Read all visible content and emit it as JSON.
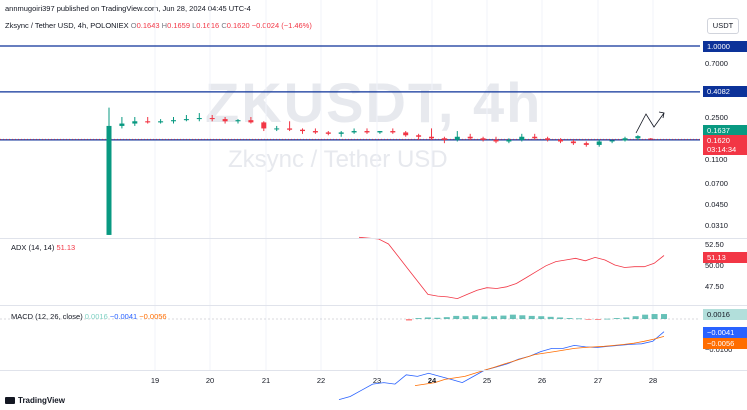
{
  "top_line": "annmugoiri397 published on TradingView.com, Jun 28, 2024 04:45 UTC-4",
  "quote_button": "USDT",
  "symbol": {
    "title": "Zksync / Tether USD, 4h, POLONIEX",
    "o_label": "O",
    "o": "0.1643",
    "h_label": "H",
    "h": "0.1659",
    "l_label": "L",
    "l": "0.1616",
    "c_label": "C",
    "c": "0.1620",
    "change": "−0.0024 (−1.46%)"
  },
  "watermark": {
    "ticker": "ZKUSDT, 4h",
    "name": "Zksync / Tether USD"
  },
  "price_axis": [
    "0.7000",
    "0.2500",
    "0.1100",
    "0.0700",
    "0.0450",
    "0.0310"
  ],
  "badges": {
    "line1": "1.0000",
    "line2": "0.4082",
    "high": "0.1637",
    "last": "0.1620",
    "countdown": "03:14:34",
    "adx": "51.13",
    "macd_hist": "0.0016",
    "macd": "−0.0041",
    "signal": "−0.0056"
  },
  "adx_panel": {
    "title": "ADX (14, 14)",
    "value": "51.13",
    "ticks": [
      "52.50",
      "50.00",
      "47.50"
    ]
  },
  "macd_panel": {
    "title": "MACD (12, 26, close)",
    "hist": "0.0016",
    "macd": "−0.0041",
    "signal": "−0.0056",
    "ticks": [
      "−0.0100"
    ]
  },
  "x_axis": [
    "19",
    "20",
    "21",
    "22",
    "23",
    "24",
    "25",
    "26",
    "27",
    "28"
  ],
  "footer": "TradingView",
  "colors": {
    "up": "#089981",
    "down": "#f23645",
    "line": "#0c3299",
    "adx": "#f23645",
    "macd": "#2962ff",
    "signal": "#ff6d00"
  },
  "chart_data": {
    "type": "candlestick",
    "title": "Zksync / Tether USD, 4h, POLONIEX",
    "scale": "log",
    "horizontal_lines": [
      1.0,
      0.4082,
      0.16
    ],
    "x_range": [
      "18",
      "28"
    ],
    "x_ticks": [
      "19",
      "20",
      "21",
      "22",
      "23",
      "24",
      "25",
      "26",
      "27",
      "28"
    ],
    "candles": [
      {
        "o": 0.025,
        "h": 0.3,
        "l": 0.025,
        "c": 0.21
      },
      {
        "o": 0.21,
        "h": 0.25,
        "l": 0.2,
        "c": 0.22
      },
      {
        "o": 0.22,
        "h": 0.25,
        "l": 0.21,
        "c": 0.23
      },
      {
        "o": 0.23,
        "h": 0.25,
        "l": 0.22,
        "c": 0.225
      },
      {
        "o": 0.225,
        "h": 0.24,
        "l": 0.22,
        "c": 0.23
      },
      {
        "o": 0.23,
        "h": 0.25,
        "l": 0.22,
        "c": 0.235
      },
      {
        "o": 0.235,
        "h": 0.26,
        "l": 0.23,
        "c": 0.24
      },
      {
        "o": 0.24,
        "h": 0.27,
        "l": 0.23,
        "c": 0.245
      },
      {
        "o": 0.245,
        "h": 0.26,
        "l": 0.23,
        "c": 0.24
      },
      {
        "o": 0.24,
        "h": 0.25,
        "l": 0.22,
        "c": 0.23
      },
      {
        "o": 0.23,
        "h": 0.24,
        "l": 0.22,
        "c": 0.235
      },
      {
        "o": 0.235,
        "h": 0.25,
        "l": 0.22,
        "c": 0.225
      },
      {
        "o": 0.225,
        "h": 0.23,
        "l": 0.19,
        "c": 0.2
      },
      {
        "o": 0.2,
        "h": 0.21,
        "l": 0.19,
        "c": 0.2
      },
      {
        "o": 0.2,
        "h": 0.23,
        "l": 0.19,
        "c": 0.195
      },
      {
        "o": 0.195,
        "h": 0.2,
        "l": 0.18,
        "c": 0.19
      },
      {
        "o": 0.19,
        "h": 0.2,
        "l": 0.18,
        "c": 0.185
      },
      {
        "o": 0.185,
        "h": 0.19,
        "l": 0.175,
        "c": 0.18
      },
      {
        "o": 0.18,
        "h": 0.19,
        "l": 0.17,
        "c": 0.185
      },
      {
        "o": 0.185,
        "h": 0.2,
        "l": 0.18,
        "c": 0.19
      },
      {
        "o": 0.19,
        "h": 0.2,
        "l": 0.18,
        "c": 0.185
      },
      {
        "o": 0.185,
        "h": 0.19,
        "l": 0.18,
        "c": 0.19
      },
      {
        "o": 0.19,
        "h": 0.2,
        "l": 0.18,
        "c": 0.185
      },
      {
        "o": 0.185,
        "h": 0.19,
        "l": 0.17,
        "c": 0.175
      },
      {
        "o": 0.175,
        "h": 0.18,
        "l": 0.16,
        "c": 0.17
      },
      {
        "o": 0.17,
        "h": 0.2,
        "l": 0.16,
        "c": 0.165
      },
      {
        "o": 0.165,
        "h": 0.17,
        "l": 0.15,
        "c": 0.16
      },
      {
        "o": 0.16,
        "h": 0.19,
        "l": 0.155,
        "c": 0.17
      },
      {
        "o": 0.17,
        "h": 0.18,
        "l": 0.16,
        "c": 0.165
      },
      {
        "o": 0.165,
        "h": 0.17,
        "l": 0.155,
        "c": 0.16
      },
      {
        "o": 0.16,
        "h": 0.17,
        "l": 0.15,
        "c": 0.155
      },
      {
        "o": 0.155,
        "h": 0.165,
        "l": 0.15,
        "c": 0.16
      },
      {
        "o": 0.16,
        "h": 0.18,
        "l": 0.155,
        "c": 0.17
      },
      {
        "o": 0.17,
        "h": 0.18,
        "l": 0.16,
        "c": 0.165
      },
      {
        "o": 0.165,
        "h": 0.17,
        "l": 0.155,
        "c": 0.16
      },
      {
        "o": 0.16,
        "h": 0.165,
        "l": 0.15,
        "c": 0.155
      },
      {
        "o": 0.155,
        "h": 0.16,
        "l": 0.145,
        "c": 0.15
      },
      {
        "o": 0.15,
        "h": 0.155,
        "l": 0.14,
        "c": 0.145
      },
      {
        "o": 0.145,
        "h": 0.16,
        "l": 0.14,
        "c": 0.155
      },
      {
        "o": 0.155,
        "h": 0.16,
        "l": 0.15,
        "c": 0.158
      },
      {
        "o": 0.158,
        "h": 0.17,
        "l": 0.155,
        "c": 0.165
      },
      {
        "o": 0.165,
        "h": 0.175,
        "l": 0.16,
        "c": 0.172
      },
      {
        "o": 0.1643,
        "h": 0.1659,
        "l": 0.1616,
        "c": 0.162
      }
    ],
    "adx": {
      "name": "ADX (14, 14)",
      "ylim": [
        45,
        54
      ],
      "values": [
        53.3,
        53.2,
        53.1,
        52.5,
        51,
        49.5,
        48,
        46.5,
        46.3,
        46.2,
        46,
        46.5,
        47,
        47.3,
        47.2,
        47.4,
        47.8,
        48.5,
        49.2,
        49.9,
        50.4,
        50.6,
        50.8,
        50.5,
        50.9,
        50.6,
        50,
        49.7,
        49.8,
        49.8,
        50.2,
        51.13
      ]
    },
    "macd": {
      "name": "MACD (12, 26, close)",
      "ylim": [
        -0.03,
        0.004
      ],
      "macd_values": [
        -0.026,
        -0.025,
        -0.023,
        -0.021,
        -0.0205,
        -0.021,
        -0.018,
        -0.0185,
        -0.0175,
        -0.0185,
        -0.0195,
        -0.0205,
        -0.0185,
        -0.0165,
        -0.0155,
        -0.0145,
        -0.013,
        -0.012,
        -0.0105,
        -0.0095,
        -0.0095,
        -0.0085,
        -0.009,
        -0.0092,
        -0.0088,
        -0.0085,
        -0.0082,
        -0.008,
        -0.0072,
        -0.0041
      ],
      "signal_values": [
        -0.0215,
        -0.021,
        -0.0205,
        -0.0195,
        -0.019,
        -0.0185,
        -0.0175,
        -0.0165,
        -0.0155,
        -0.0145,
        -0.0135,
        -0.0125,
        -0.0115,
        -0.011,
        -0.0105,
        -0.01,
        -0.0095,
        -0.0092,
        -0.009,
        -0.0088,
        -0.0085,
        -0.0082,
        -0.0078,
        -0.0072,
        -0.0065,
        -0.0056
      ],
      "hist_values": [
        -0.0005,
        0.0003,
        0.0005,
        0.0004,
        0.0006,
        0.001,
        0.0009,
        0.0012,
        0.0008,
        0.0009,
        0.0011,
        0.0014,
        0.0012,
        0.001,
        0.0009,
        0.0007,
        0.0005,
        0.0003,
        0.0002,
        -0.0002,
        -0.0003,
        0.0001,
        0.0003,
        0.0005,
        0.0009,
        0.0014,
        0.0016,
        0.0016
      ]
    }
  }
}
